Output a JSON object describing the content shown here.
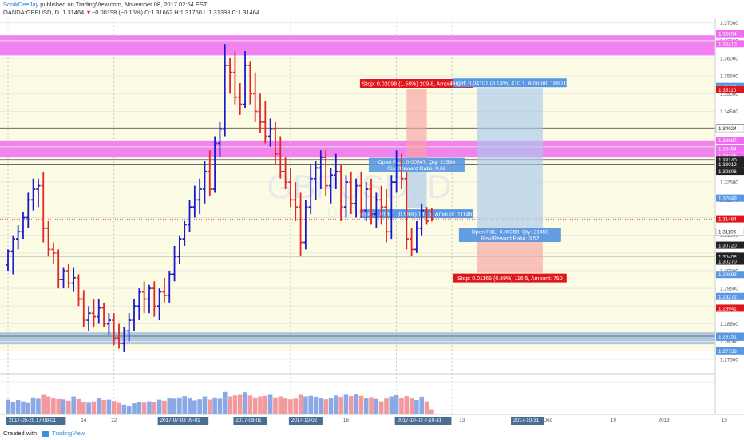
{
  "header": {
    "author": "SonikDeeJay",
    "published": "published on TradingView.com, November 08, 2017 02:54 EST",
    "symbol": "OANDA:GBPUSD, D",
    "last": "1.31464",
    "change": "−0.00198 (−0.15%)",
    "open_label": "O:",
    "open": "1.31662",
    "high_label": "H:",
    "high": "1.31760",
    "low_label": "L:",
    "low": "1.31393",
    "close_label": "C:",
    "close": "1.31464"
  },
  "watermark": {
    "symbol": "GBPUSD, D",
    "sub": "GBP/USD"
  },
  "footer": {
    "created_with": "Created with",
    "brand": "TradingView"
  },
  "colors": {
    "up": "#1a1acc",
    "down": "#e32626",
    "magenta_zone": "#f06cf0",
    "yellow_zone": "#fcfbe3",
    "blue_zone": "#94b8de",
    "target_fill": "#a9c8ee",
    "stop_fill": "#f7a3a3",
    "label_blue": "#5a97e2",
    "label_red": "#e0161d",
    "label_black": "#222222",
    "vol_up": "#8aa8e6",
    "vol_down": "#f1999c"
  },
  "chart_data": {
    "type": "ohlc",
    "title": "",
    "xlabel": "",
    "ylabel": "",
    "ylim": [
      1.2709,
      1.3715
    ],
    "grid": true,
    "price_ticks": [
      "1.37000",
      "1.36500",
      "1.36000",
      "1.35500",
      "1.35000",
      "1.34500",
      "1.34000",
      "1.33500",
      "1.33000",
      "1.32500",
      "1.32000",
      "1.31500",
      "1.31000",
      "1.30500",
      "1.30000",
      "1.29500",
      "1.29000",
      "1.28500",
      "1.28000",
      "1.27500"
    ],
    "time_labels": [
      {
        "text": "2017-05-29 17-08-01",
        "hl": true,
        "bar": 0
      },
      {
        "text": "14",
        "hl": false,
        "bar": 15
      },
      {
        "text": "22",
        "hl": false,
        "bar": 21
      },
      {
        "text": "2017-07-03 09-01",
        "hl": true,
        "bar": 30
      },
      {
        "text": "2017-08-01",
        "hl": true,
        "bar": 45
      },
      {
        "text": "2017-10-02",
        "hl": true,
        "bar": 56
      },
      {
        "text": "16",
        "hl": false,
        "bar": 67
      },
      {
        "text": "2017-10-02 7-10-31",
        "hl": true,
        "bar": 77
      },
      {
        "text": "13",
        "hl": false,
        "bar": 90
      },
      {
        "text": "2017-10-31",
        "hl": true,
        "bar": 100
      },
      {
        "text": "Dec",
        "hl": false,
        "bar": 107
      },
      {
        "text": "19",
        "hl": false,
        "bar": 120
      },
      {
        "text": "2018",
        "hl": false,
        "bar": 130
      },
      {
        "text": "15",
        "hl": false,
        "bar": 142
      }
    ],
    "volume_ticks": [
      "100K",
      "50K"
    ],
    "zones": [
      {
        "kind": "yellow",
        "from": 1.36,
        "to": 1.2775
      },
      {
        "kind": "magenta",
        "from": 1.3665,
        "to": 1.3608
      },
      {
        "kind": "magenta",
        "from": 1.3368,
        "to": 1.332
      },
      {
        "kind": "blue",
        "from": 1.2826,
        "to": 1.2792
      }
    ],
    "hlines": [
      1.3403,
      1.3314,
      1.3301,
      1.3041,
      1.2815
    ],
    "bars": [
      {
        "o": 1.3016,
        "h": 1.306,
        "l": 1.3,
        "c": 1.3055
      },
      {
        "o": 1.3055,
        "h": 1.31,
        "l": 1.299,
        "c": 1.309
      },
      {
        "o": 1.309,
        "h": 1.3128,
        "l": 1.306,
        "c": 1.311
      },
      {
        "o": 1.311,
        "h": 1.3165,
        "l": 1.309,
        "c": 1.315
      },
      {
        "o": 1.315,
        "h": 1.322,
        "l": 1.312,
        "c": 1.32
      },
      {
        "o": 1.32,
        "h": 1.326,
        "l": 1.317,
        "c": 1.323
      },
      {
        "o": 1.323,
        "h": 1.326,
        "l": 1.318,
        "c": 1.324
      },
      {
        "o": 1.324,
        "h": 1.328,
        "l": 1.308,
        "c": 1.312
      },
      {
        "o": 1.312,
        "h": 1.314,
        "l": 1.304,
        "c": 1.306
      },
      {
        "o": 1.306,
        "h": 1.308,
        "l": 1.302,
        "c": 1.305
      },
      {
        "o": 1.305,
        "h": 1.306,
        "l": 1.295,
        "c": 1.2975
      },
      {
        "o": 1.2975,
        "h": 1.301,
        "l": 1.295,
        "c": 1.3
      },
      {
        "o": 1.3,
        "h": 1.302,
        "l": 1.295,
        "c": 1.2965
      },
      {
        "o": 1.2965,
        "h": 1.301,
        "l": 1.294,
        "c": 1.298
      },
      {
        "o": 1.298,
        "h": 1.299,
        "l": 1.29,
        "c": 1.292
      },
      {
        "o": 1.292,
        "h": 1.2945,
        "l": 1.284,
        "c": 1.286
      },
      {
        "o": 1.286,
        "h": 1.29,
        "l": 1.283,
        "c": 1.288
      },
      {
        "o": 1.288,
        "h": 1.292,
        "l": 1.284,
        "c": 1.287
      },
      {
        "o": 1.287,
        "h": 1.292,
        "l": 1.285,
        "c": 1.2895
      },
      {
        "o": 1.2895,
        "h": 1.291,
        "l": 1.284,
        "c": 1.285
      },
      {
        "o": 1.285,
        "h": 1.288,
        "l": 1.282,
        "c": 1.286
      },
      {
        "o": 1.286,
        "h": 1.288,
        "l": 1.279,
        "c": 1.281
      },
      {
        "o": 1.281,
        "h": 1.285,
        "l": 1.278,
        "c": 1.2795
      },
      {
        "o": 1.2795,
        "h": 1.284,
        "l": 1.277,
        "c": 1.283
      },
      {
        "o": 1.283,
        "h": 1.288,
        "l": 1.28,
        "c": 1.286
      },
      {
        "o": 1.286,
        "h": 1.292,
        "l": 1.283,
        "c": 1.29
      },
      {
        "o": 1.29,
        "h": 1.295,
        "l": 1.286,
        "c": 1.294
      },
      {
        "o": 1.294,
        "h": 1.297,
        "l": 1.288,
        "c": 1.292
      },
      {
        "o": 1.292,
        "h": 1.296,
        "l": 1.288,
        "c": 1.295
      },
      {
        "o": 1.295,
        "h": 1.297,
        "l": 1.287,
        "c": 1.29
      },
      {
        "o": 1.29,
        "h": 1.295,
        "l": 1.286,
        "c": 1.294
      },
      {
        "o": 1.294,
        "h": 1.298,
        "l": 1.291,
        "c": 1.293
      },
      {
        "o": 1.293,
        "h": 1.3,
        "l": 1.291,
        "c": 1.299
      },
      {
        "o": 1.299,
        "h": 1.307,
        "l": 1.297,
        "c": 1.304
      },
      {
        "o": 1.304,
        "h": 1.31,
        "l": 1.302,
        "c": 1.309
      },
      {
        "o": 1.309,
        "h": 1.314,
        "l": 1.307,
        "c": 1.313
      },
      {
        "o": 1.313,
        "h": 1.32,
        "l": 1.311,
        "c": 1.318
      },
      {
        "o": 1.318,
        "h": 1.324,
        "l": 1.315,
        "c": 1.32
      },
      {
        "o": 1.32,
        "h": 1.326,
        "l": 1.316,
        "c": 1.323
      },
      {
        "o": 1.323,
        "h": 1.331,
        "l": 1.319,
        "c": 1.328
      },
      {
        "o": 1.328,
        "h": 1.334,
        "l": 1.321,
        "c": 1.323
      },
      {
        "o": 1.323,
        "h": 1.338,
        "l": 1.322,
        "c": 1.336
      },
      {
        "o": 1.336,
        "h": 1.342,
        "l": 1.332,
        "c": 1.34
      },
      {
        "o": 1.34,
        "h": 1.364,
        "l": 1.338,
        "c": 1.358
      },
      {
        "o": 1.358,
        "h": 1.36,
        "l": 1.35,
        "c": 1.356
      },
      {
        "o": 1.356,
        "h": 1.362,
        "l": 1.347,
        "c": 1.349
      },
      {
        "o": 1.349,
        "h": 1.353,
        "l": 1.344,
        "c": 1.347
      },
      {
        "o": 1.347,
        "h": 1.362,
        "l": 1.346,
        "c": 1.358
      },
      {
        "o": 1.358,
        "h": 1.359,
        "l": 1.347,
        "c": 1.35
      },
      {
        "o": 1.35,
        "h": 1.356,
        "l": 1.342,
        "c": 1.345
      },
      {
        "o": 1.345,
        "h": 1.35,
        "l": 1.339,
        "c": 1.342
      },
      {
        "o": 1.342,
        "h": 1.348,
        "l": 1.336,
        "c": 1.338
      },
      {
        "o": 1.338,
        "h": 1.343,
        "l": 1.335,
        "c": 1.34
      },
      {
        "o": 1.34,
        "h": 1.342,
        "l": 1.33,
        "c": 1.333
      },
      {
        "o": 1.333,
        "h": 1.338,
        "l": 1.326,
        "c": 1.328
      },
      {
        "o": 1.328,
        "h": 1.332,
        "l": 1.323,
        "c": 1.325
      },
      {
        "o": 1.325,
        "h": 1.329,
        "l": 1.318,
        "c": 1.32
      },
      {
        "o": 1.32,
        "h": 1.325,
        "l": 1.314,
        "c": 1.318
      },
      {
        "o": 1.318,
        "h": 1.322,
        "l": 1.304,
        "c": 1.308
      },
      {
        "o": 1.308,
        "h": 1.32,
        "l": 1.306,
        "c": 1.318
      },
      {
        "o": 1.318,
        "h": 1.33,
        "l": 1.316,
        "c": 1.326
      },
      {
        "o": 1.326,
        "h": 1.331,
        "l": 1.32,
        "c": 1.329
      },
      {
        "o": 1.329,
        "h": 1.334,
        "l": 1.323,
        "c": 1.332
      },
      {
        "o": 1.332,
        "h": 1.334,
        "l": 1.321,
        "c": 1.324
      },
      {
        "o": 1.324,
        "h": 1.329,
        "l": 1.319,
        "c": 1.327
      },
      {
        "o": 1.327,
        "h": 1.333,
        "l": 1.323,
        "c": 1.328
      },
      {
        "o": 1.328,
        "h": 1.33,
        "l": 1.314,
        "c": 1.318
      },
      {
        "o": 1.318,
        "h": 1.327,
        "l": 1.315,
        "c": 1.325
      },
      {
        "o": 1.325,
        "h": 1.328,
        "l": 1.316,
        "c": 1.319
      },
      {
        "o": 1.319,
        "h": 1.326,
        "l": 1.315,
        "c": 1.324
      },
      {
        "o": 1.324,
        "h": 1.328,
        "l": 1.315,
        "c": 1.317
      },
      {
        "o": 1.317,
        "h": 1.325,
        "l": 1.314,
        "c": 1.323
      },
      {
        "o": 1.323,
        "h": 1.326,
        "l": 1.313,
        "c": 1.316
      },
      {
        "o": 1.316,
        "h": 1.322,
        "l": 1.312,
        "c": 1.32
      },
      {
        "o": 1.32,
        "h": 1.324,
        "l": 1.313,
        "c": 1.318
      },
      {
        "o": 1.318,
        "h": 1.323,
        "l": 1.308,
        "c": 1.311
      },
      {
        "o": 1.311,
        "h": 1.327,
        "l": 1.309,
        "c": 1.325
      },
      {
        "o": 1.325,
        "h": 1.334,
        "l": 1.322,
        "c": 1.331
      },
      {
        "o": 1.331,
        "h": 1.333,
        "l": 1.323,
        "c": 1.326
      },
      {
        "o": 1.326,
        "h": 1.328,
        "l": 1.306,
        "c": 1.309
      },
      {
        "o": 1.309,
        "h": 1.312,
        "l": 1.304,
        "c": 1.306
      },
      {
        "o": 1.306,
        "h": 1.314,
        "l": 1.305,
        "c": 1.312
      },
      {
        "o": 1.312,
        "h": 1.319,
        "l": 1.31,
        "c": 1.317
      },
      {
        "o": 1.317,
        "h": 1.318,
        "l": 1.313,
        "c": 1.314
      },
      {
        "o": 1.3166,
        "h": 1.3176,
        "l": 1.3139,
        "c": 1.3146
      }
    ],
    "volume": [
      45,
      38,
      44,
      40,
      35,
      52,
      48,
      60,
      55,
      50,
      47,
      46,
      42,
      55,
      47,
      38,
      36,
      40,
      51,
      44,
      45,
      41,
      35,
      30,
      27,
      34,
      38,
      36,
      40,
      38,
      45,
      42,
      50,
      48,
      52,
      56,
      50,
      43,
      46,
      55,
      45,
      52,
      48,
      69,
      55,
      58,
      60,
      68,
      58,
      52,
      55,
      57,
      60,
      52,
      55,
      50,
      46,
      48,
      60,
      55,
      57,
      54,
      51,
      46,
      50,
      58,
      54,
      60,
      56,
      61,
      57,
      50,
      53,
      47,
      40,
      50,
      55,
      59,
      51,
      56,
      49,
      44,
      54,
      40,
      16
    ],
    "volume_ymax": 120,
    "positions": [
      {
        "side": "short",
        "bar_from": 79,
        "bar_to": 83,
        "entry": 1.3303,
        "stop": 1.3512,
        "target": 1.3178,
        "stop_label": "Stop: 0.02098 (1.58%) 209.8, Amount: 1205",
        "target_label": "Target: 0.01301 (0.98%) 130.1, Amount: 11146.5",
        "pnl_label": "Open P&L: 0.00547, Qty: 21594",
        "rr_label": "Risk/Reward Ratio: 0.62"
      },
      {
        "side": "long",
        "bar_from": 93,
        "bar_to": 106,
        "entry": 1.3106,
        "stop": 1.2994,
        "target": 1.3516,
        "stop_label": "Stop: 0.01165 (0.89%) 116.5, Amount: 750",
        "target_label": "Target: 0.04101 (3.13%) 410.1, Amount: 1880.03",
        "pnl_label": "Open P&L: 0.00358, Qty: 21459",
        "rr_label": "Risk/Reward Ratio: 3.52"
      }
    ],
    "price_labels": [
      {
        "v": 1.36694,
        "t": "1.36694",
        "c": "magenta"
      },
      {
        "v": 1.3641,
        "t": "1.36410",
        "c": "magenta"
      },
      {
        "v": 1.35207,
        "t": "1.35207",
        "c": "blue"
      },
      {
        "v": 1.3511,
        "t": "1.35110",
        "c": "red"
      },
      {
        "v": 1.34039,
        "t": "1.34039",
        "c": "black"
      },
      {
        "v": 1.34024,
        "t": "1.34024",
        "c": "none"
      },
      {
        "v": 1.33687,
        "t": "1.33687",
        "c": "magenta"
      },
      {
        "v": 1.33248,
        "t": "1.33248",
        "c": "magenta"
      },
      {
        "v": 1.33454,
        "t": "1.33454",
        "c": "magenta"
      },
      {
        "v": 1.3314,
        "t": "1.33140",
        "c": "black"
      },
      {
        "v": 1.33012,
        "t": "1.33012",
        "c": "black"
      },
      {
        "v": 1.32806,
        "t": "1.32806",
        "c": "black"
      },
      {
        "v": 1.32049,
        "t": "1.32049",
        "c": "blue"
      },
      {
        "v": 1.31464,
        "t": "1.31464",
        "c": "red"
      },
      {
        "v": 1.31106,
        "t": "1.31106",
        "c": "none"
      },
      {
        "v": 1.3072,
        "t": "1.30720",
        "c": "black"
      },
      {
        "v": 1.30408,
        "t": "1.30408",
        "c": "black"
      },
      {
        "v": 1.29893,
        "t": "1.29893",
        "c": "blue"
      },
      {
        "v": 1.29272,
        "t": "1.29272",
        "c": "blue"
      },
      {
        "v": 1.28941,
        "t": "1.28941",
        "c": "red"
      },
      {
        "v": 1.28118,
        "t": "1.28118",
        "c": "blue"
      },
      {
        "v": 1.27738,
        "t": "1.27738",
        "c": "blue"
      },
      {
        "v": 1.28151,
        "t": "1.28151",
        "c": "blue"
      },
      {
        "v": 1.3027,
        "t": "1.30270",
        "c": "black"
      }
    ]
  }
}
